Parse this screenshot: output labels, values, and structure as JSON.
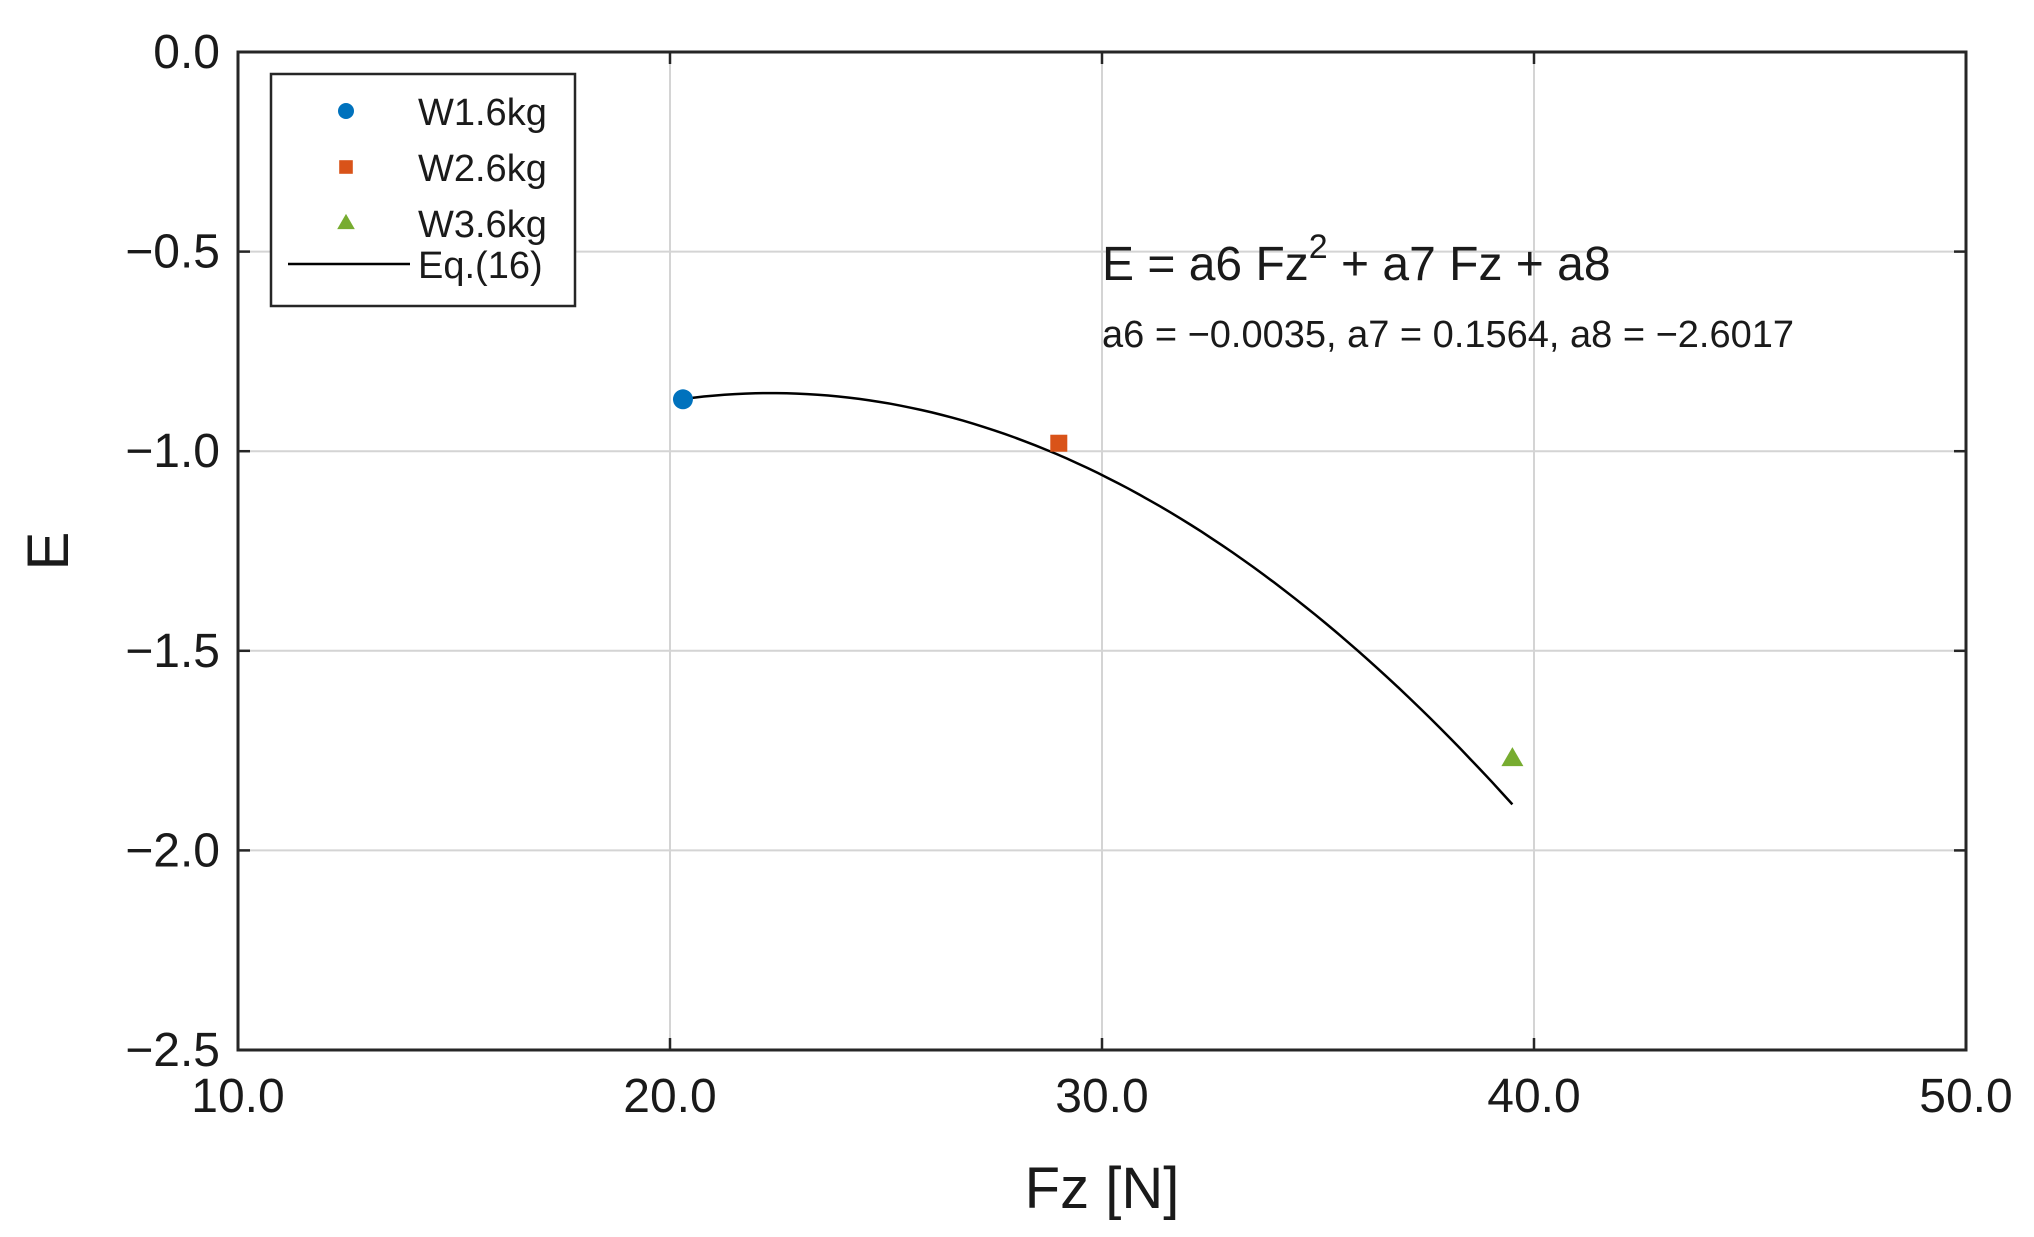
{
  "chart_data": {
    "type": "scatter",
    "xlabel": "Fz [N]",
    "ylabel": "E",
    "xlim": [
      10.0,
      50.0
    ],
    "ylim": [
      -2.5,
      0.0
    ],
    "x_ticks": [
      10.0,
      20.0,
      30.0,
      40.0,
      50.0
    ],
    "x_tick_labels": [
      "10.0",
      "20.0",
      "30.0",
      "40.0",
      "50.0"
    ],
    "y_ticks": [
      0.0,
      -0.5,
      -1.0,
      -1.5,
      -2.0,
      -2.5
    ],
    "y_tick_labels": [
      "0.0",
      "−0.5",
      "−1.0",
      "−1.5",
      "−2.0",
      "−2.5"
    ],
    "grid": true,
    "legend_position": "top-left",
    "series": [
      {
        "name": "W1.6kg",
        "marker": "circle",
        "color": "#0072bd",
        "x": [
          20.3
        ],
        "y": [
          -0.87
        ]
      },
      {
        "name": "W2.6kg",
        "marker": "square",
        "color": "#d95319",
        "x": [
          29.0
        ],
        "y": [
          -0.98
        ]
      },
      {
        "name": "W3.6kg",
        "marker": "triangle",
        "color": "#77ac30",
        "x": [
          39.5
        ],
        "y": [
          -1.77
        ]
      }
    ],
    "fit": {
      "name": "Eq.(16)",
      "color": "#000000",
      "x_range": [
        20.3,
        39.5
      ],
      "coefficients": {
        "a6": -0.0035,
        "a7": 0.1564,
        "a8": -2.6017
      }
    },
    "annotation": {
      "equation_main": "E = a6 Fz",
      "equation_sup": "2",
      "equation_rest": " + a7 Fz + a8",
      "coefficients_text": "a6 = −0.0035, a7 = 0.1564, a8 = −2.6017"
    }
  }
}
